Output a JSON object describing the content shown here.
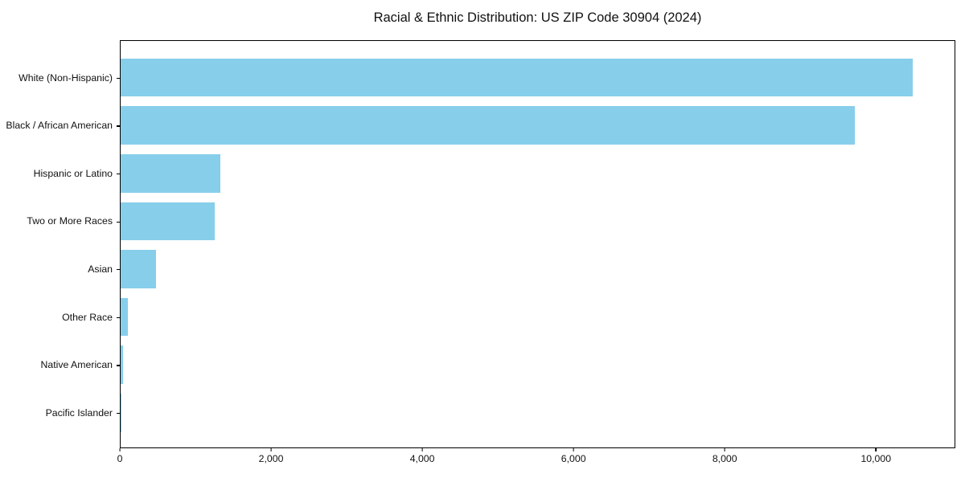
{
  "title": "Racial & Ethnic Distribution: US ZIP Code 30904 (2024)",
  "colors": {
    "background": "#FFFFFF",
    "bar": "#87CEEB",
    "axis": "#000000",
    "text": "#111111"
  },
  "chart_data": {
    "type": "bar",
    "orientation": "horizontal",
    "title": "Racial & Ethnic Distribution: US ZIP Code 30904 (2024)",
    "categories": [
      "White (Non-Hispanic)",
      "Black / African American",
      "Hispanic or Latino",
      "Two or More Races",
      "Asian",
      "Other Race",
      "Native American",
      "Pacific Islander"
    ],
    "values": [
      10500,
      9730,
      1320,
      1250,
      470,
      95,
      30,
      8
    ],
    "bar_color": "#87CEEB",
    "xlabel": "",
    "ylabel": "",
    "xlim": [
      0,
      11050
    ],
    "x_ticks": [
      0,
      2000,
      4000,
      6000,
      8000,
      10000
    ],
    "x_tick_labels": [
      "0",
      "2,000",
      "4,000",
      "6,000",
      "8,000",
      "10,000"
    ],
    "grid": false,
    "legend": null,
    "sorted": "descending"
  }
}
